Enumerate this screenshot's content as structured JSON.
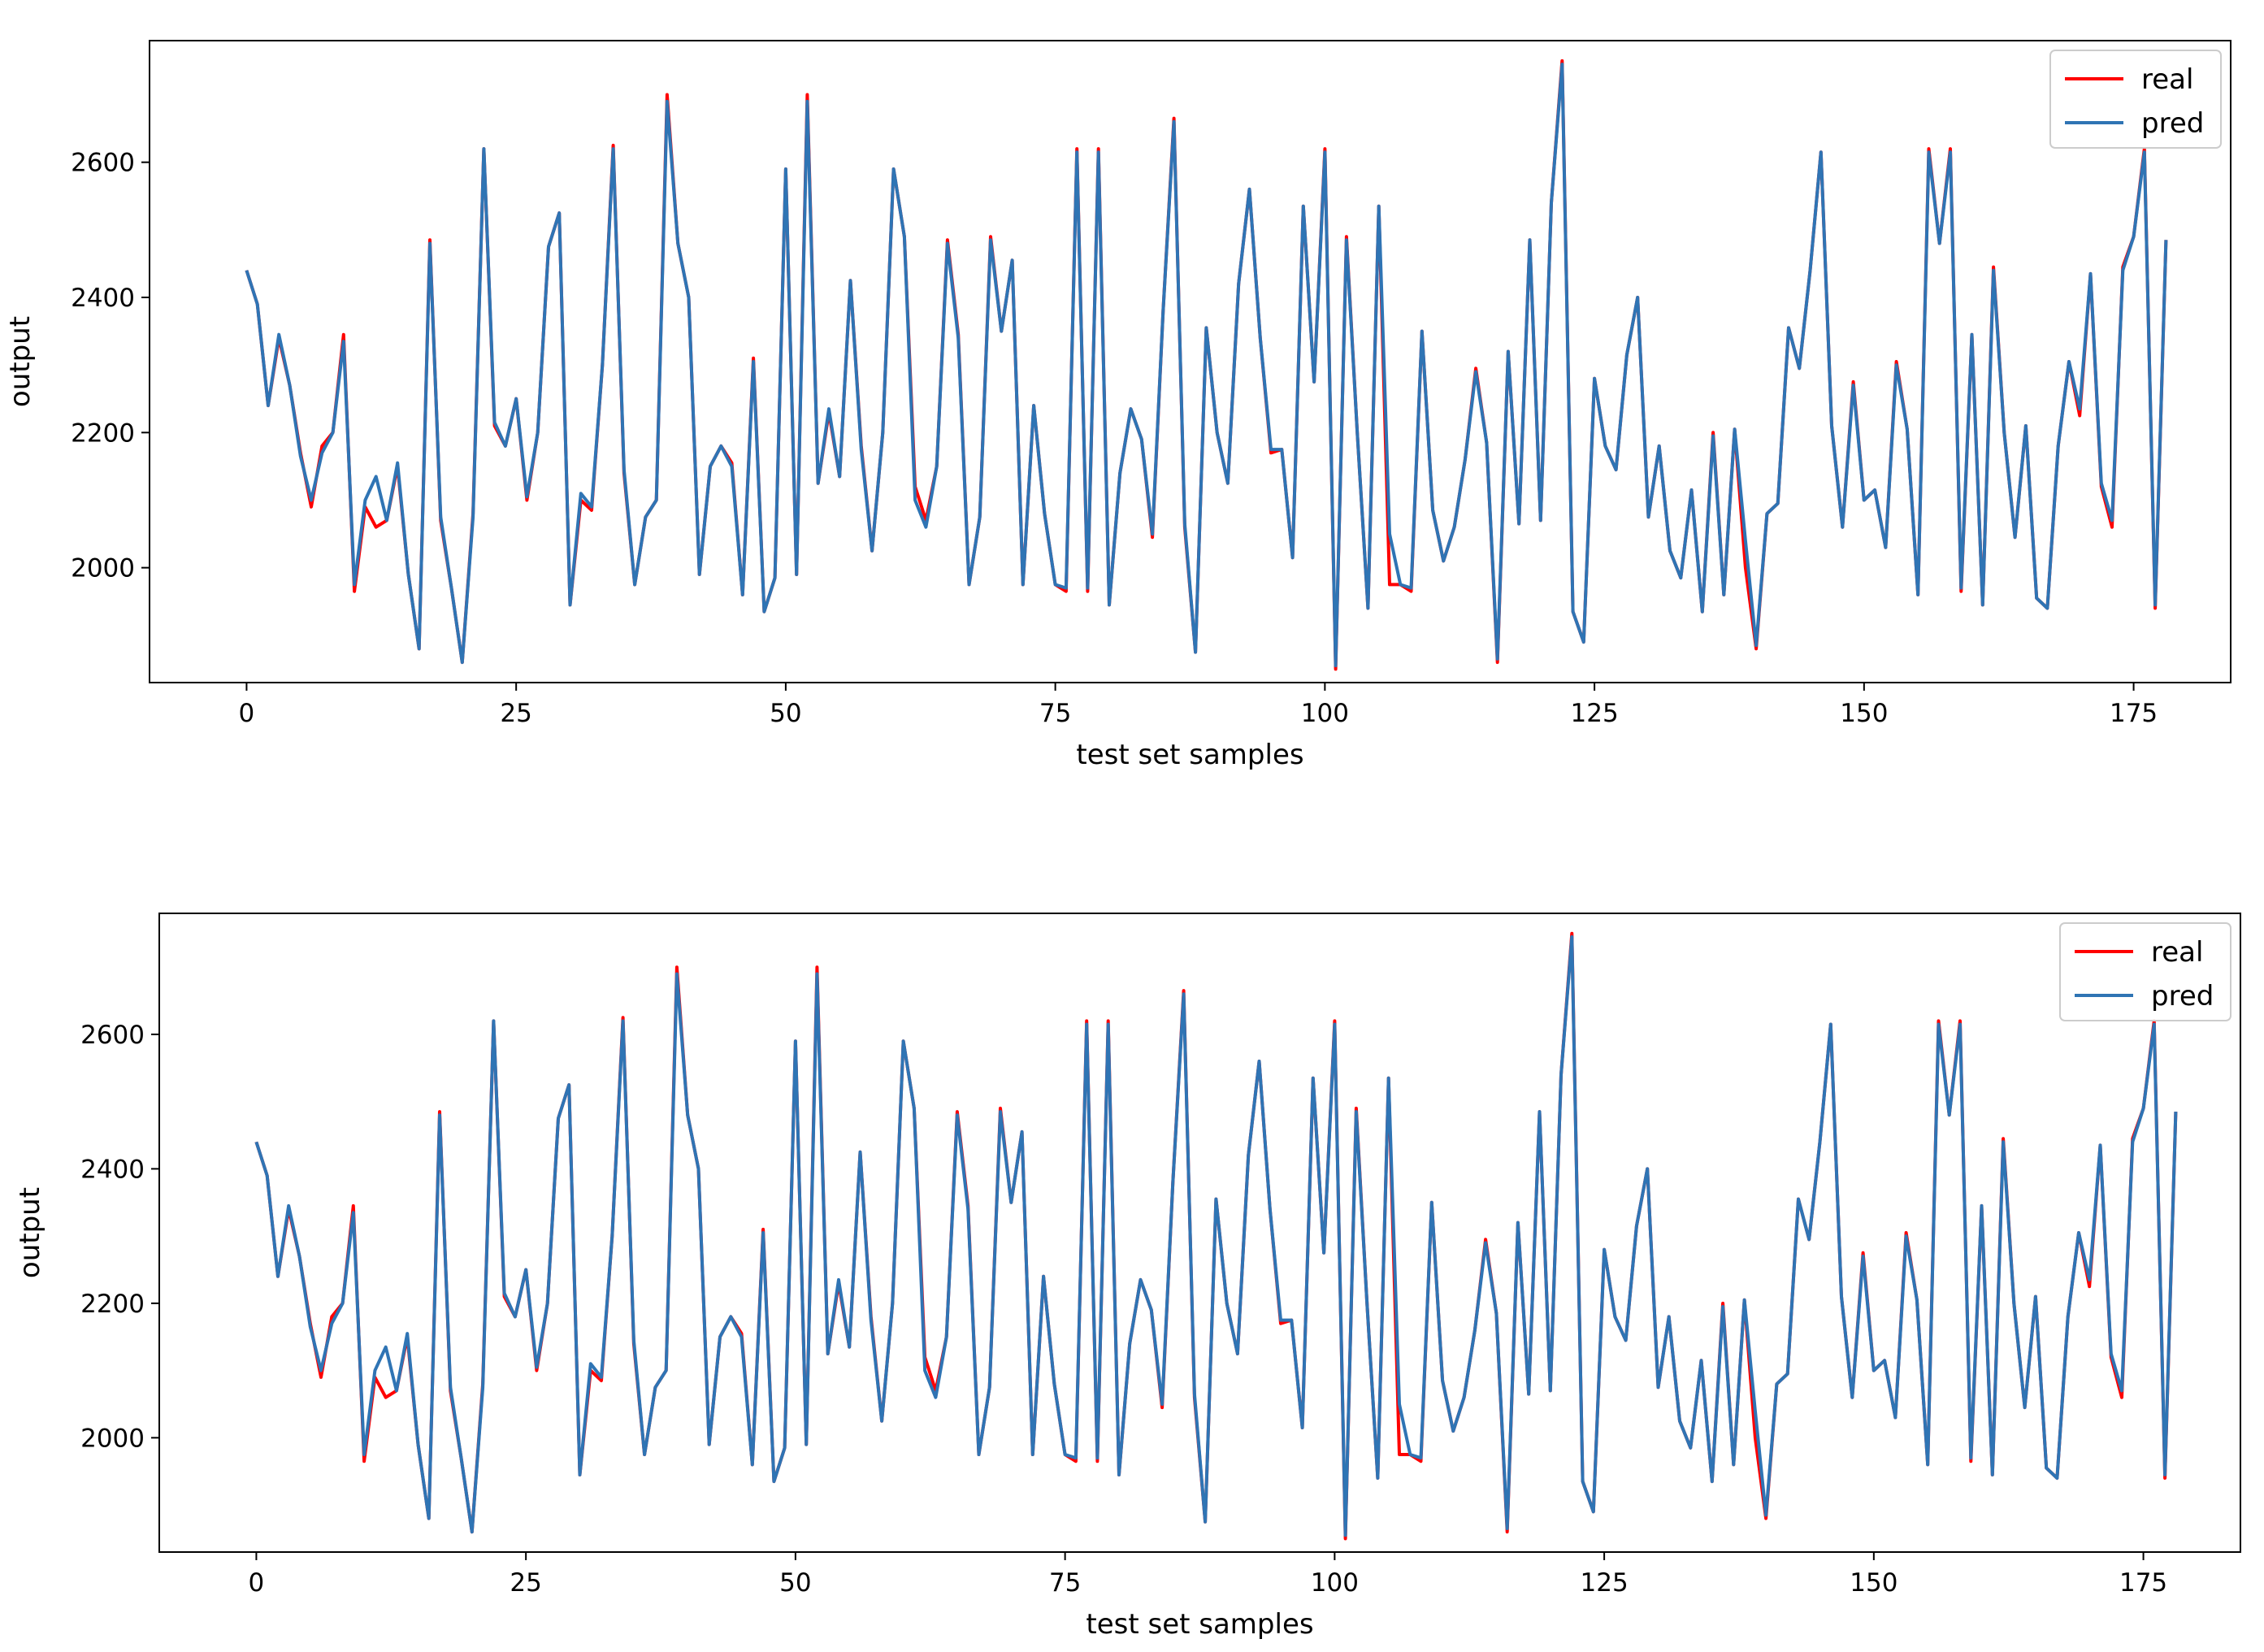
{
  "chart_data": [
    {
      "type": "line",
      "xlabel": "test set samples",
      "ylabel": "output",
      "xticks": [
        0,
        25,
        50,
        75,
        100,
        125,
        150,
        175
      ],
      "yticks": [
        2000,
        2200,
        2400,
        2600
      ],
      "xlim": [
        -9,
        184
      ],
      "ylim": [
        1830,
        2780
      ],
      "grid": false,
      "legend_position": "top-right",
      "x": [
        0,
        1,
        2,
        3,
        4,
        5,
        6,
        7,
        8,
        9,
        10,
        11,
        12,
        13,
        14,
        15,
        16,
        17,
        18,
        19,
        20,
        21,
        22,
        23,
        24,
        25,
        26,
        27,
        28,
        29,
        30,
        31,
        32,
        33,
        34,
        35,
        36,
        37,
        38,
        39,
        40,
        41,
        42,
        43,
        44,
        45,
        46,
        47,
        48,
        49,
        50,
        51,
        52,
        53,
        54,
        55,
        56,
        57,
        58,
        59,
        60,
        61,
        62,
        63,
        64,
        65,
        66,
        67,
        68,
        69,
        70,
        71,
        72,
        73,
        74,
        75,
        76,
        77,
        78,
        79,
        80,
        81,
        82,
        83,
        84,
        85,
        86,
        87,
        88,
        89,
        90,
        91,
        92,
        93,
        94,
        95,
        96,
        97,
        98,
        99,
        100,
        101,
        102,
        103,
        104,
        105,
        106,
        107,
        108,
        109,
        110,
        111,
        112,
        113,
        114,
        115,
        116,
        117,
        118,
        119,
        120,
        121,
        122,
        123,
        124,
        125,
        126,
        127,
        128,
        129,
        130,
        131,
        132,
        133,
        134,
        135,
        136,
        137,
        138,
        139,
        140,
        141,
        142,
        143,
        144,
        145,
        146,
        147,
        148,
        149,
        150,
        151,
        152,
        153,
        154,
        155,
        156,
        157,
        158,
        159,
        160,
        161,
        162,
        163,
        164,
        165,
        166,
        167,
        168,
        169,
        170,
        171,
        172,
        173,
        174,
        175,
        176,
        177,
        178
      ],
      "series": [
        {
          "name": "real",
          "color": "#ff0000",
          "values": [
            2440,
            2390,
            2240,
            2340,
            2270,
            2170,
            2090,
            2180,
            2200,
            2345,
            1965,
            2090,
            2060,
            2070,
            2150,
            1990,
            1880,
            2485,
            2070,
            1970,
            1860,
            2080,
            2620,
            2210,
            2180,
            2250,
            2100,
            2200,
            2475,
            2525,
            1945,
            2100,
            2085,
            2300,
            2625,
            2140,
            1975,
            2075,
            2100,
            2700,
            2480,
            2400,
            1990,
            2150,
            2180,
            2155,
            1960,
            2310,
            1935,
            1985,
            2590,
            1990,
            2700,
            2125,
            2230,
            2135,
            2425,
            2180,
            2025,
            2200,
            2590,
            2490,
            2120,
            2070,
            2150,
            2485,
            2345,
            1975,
            2075,
            2490,
            2350,
            2455,
            1975,
            2240,
            2080,
            1975,
            1965,
            2620,
            1965,
            2620,
            1945,
            2140,
            2235,
            2190,
            2045,
            2380,
            2665,
            2060,
            1875,
            2355,
            2200,
            2125,
            2420,
            2560,
            2340,
            2170,
            2175,
            2015,
            2535,
            2275,
            2620,
            1850,
            2490,
            2200,
            1940,
            2535,
            1975,
            1975,
            1965,
            2350,
            2085,
            2010,
            2060,
            2160,
            2295,
            2185,
            1860,
            2320,
            2065,
            2485,
            2070,
            2540,
            2750,
            1935,
            1890,
            2280,
            2180,
            2145,
            2315,
            2400,
            2075,
            2180,
            2025,
            1985,
            2115,
            1935,
            2200,
            1960,
            2205,
            2000,
            1880,
            2080,
            2095,
            2355,
            2295,
            2440,
            2615,
            2210,
            2060,
            2275,
            2100,
            2115,
            2030,
            2305,
            2205,
            1960,
            2620,
            2480,
            2620,
            1965,
            2345,
            1945,
            2445,
            2200,
            2045,
            2210,
            1955,
            1940,
            2180,
            2305,
            2225,
            2435,
            2120,
            2060,
            2445,
            2490,
            2620,
            1940,
            2485
          ]
        },
        {
          "name": "pred",
          "color": "#2f74b4",
          "values": [
            2440,
            2390,
            2240,
            2345,
            2270,
            2165,
            2100,
            2170,
            2200,
            2335,
            1975,
            2100,
            2135,
            2070,
            2155,
            1990,
            1880,
            2480,
            2075,
            1970,
            1860,
            2075,
            2620,
            2215,
            2180,
            2250,
            2105,
            2200,
            2475,
            2525,
            1945,
            2110,
            2090,
            2300,
            2620,
            2145,
            1975,
            2075,
            2100,
            2690,
            2480,
            2400,
            1990,
            2150,
            2180,
            2150,
            1960,
            2305,
            1935,
            1985,
            2590,
            1990,
            2690,
            2125,
            2235,
            2135,
            2425,
            2175,
            2025,
            2200,
            2590,
            2490,
            2100,
            2060,
            2150,
            2480,
            2340,
            1975,
            2075,
            2485,
            2350,
            2455,
            1975,
            2240,
            2080,
            1975,
            1970,
            2615,
            1970,
            2615,
            1945,
            2140,
            2235,
            2190,
            2050,
            2380,
            2660,
            2065,
            1875,
            2355,
            2200,
            2125,
            2420,
            2560,
            2340,
            2175,
            2175,
            2015,
            2535,
            2275,
            2615,
            1855,
            2485,
            2200,
            1940,
            2535,
            2050,
            1975,
            1970,
            2350,
            2085,
            2010,
            2060,
            2160,
            2290,
            2185,
            1865,
            2320,
            2065,
            2485,
            2070,
            2540,
            2745,
            1935,
            1890,
            2280,
            2180,
            2145,
            2315,
            2400,
            2075,
            2180,
            2025,
            1985,
            2115,
            1935,
            2195,
            1960,
            2205,
            2040,
            1885,
            2080,
            2095,
            2355,
            2295,
            2440,
            2615,
            2210,
            2060,
            2270,
            2100,
            2115,
            2030,
            2300,
            2205,
            1960,
            2615,
            2480,
            2615,
            1970,
            2345,
            1945,
            2440,
            2200,
            2045,
            2210,
            1955,
            1940,
            2180,
            2305,
            2235,
            2435,
            2125,
            2070,
            2440,
            2490,
            2615,
            1945,
            2485
          ]
        }
      ]
    },
    {
      "type": "line",
      "xlabel": "test set samples",
      "ylabel": "output",
      "xticks": [
        0,
        25,
        50,
        75,
        100,
        125,
        150,
        175
      ],
      "yticks": [
        2000,
        2200,
        2400,
        2600
      ],
      "xlim": [
        -9,
        184
      ],
      "ylim": [
        1830,
        2780
      ],
      "grid": false,
      "legend_position": "top-right",
      "x": [
        0,
        1,
        2,
        3,
        4,
        5,
        6,
        7,
        8,
        9,
        10,
        11,
        12,
        13,
        14,
        15,
        16,
        17,
        18,
        19,
        20,
        21,
        22,
        23,
        24,
        25,
        26,
        27,
        28,
        29,
        30,
        31,
        32,
        33,
        34,
        35,
        36,
        37,
        38,
        39,
        40,
        41,
        42,
        43,
        44,
        45,
        46,
        47,
        48,
        49,
        50,
        51,
        52,
        53,
        54,
        55,
        56,
        57,
        58,
        59,
        60,
        61,
        62,
        63,
        64,
        65,
        66,
        67,
        68,
        69,
        70,
        71,
        72,
        73,
        74,
        75,
        76,
        77,
        78,
        79,
        80,
        81,
        82,
        83,
        84,
        85,
        86,
        87,
        88,
        89,
        90,
        91,
        92,
        93,
        94,
        95,
        96,
        97,
        98,
        99,
        100,
        101,
        102,
        103,
        104,
        105,
        106,
        107,
        108,
        109,
        110,
        111,
        112,
        113,
        114,
        115,
        116,
        117,
        118,
        119,
        120,
        121,
        122,
        123,
        124,
        125,
        126,
        127,
        128,
        129,
        130,
        131,
        132,
        133,
        134,
        135,
        136,
        137,
        138,
        139,
        140,
        141,
        142,
        143,
        144,
        145,
        146,
        147,
        148,
        149,
        150,
        151,
        152,
        153,
        154,
        155,
        156,
        157,
        158,
        159,
        160,
        161,
        162,
        163,
        164,
        165,
        166,
        167,
        168,
        169,
        170,
        171,
        172,
        173,
        174,
        175,
        176,
        177,
        178
      ],
      "series": [
        {
          "name": "real",
          "color": "#ff0000",
          "values": [
            2440,
            2390,
            2240,
            2340,
            2270,
            2170,
            2090,
            2180,
            2200,
            2345,
            1965,
            2090,
            2060,
            2070,
            2150,
            1990,
            1880,
            2485,
            2070,
            1970,
            1860,
            2080,
            2620,
            2210,
            2180,
            2250,
            2100,
            2200,
            2475,
            2525,
            1945,
            2100,
            2085,
            2300,
            2625,
            2140,
            1975,
            2075,
            2100,
            2700,
            2480,
            2400,
            1990,
            2150,
            2180,
            2155,
            1960,
            2310,
            1935,
            1985,
            2590,
            1990,
            2700,
            2125,
            2230,
            2135,
            2425,
            2180,
            2025,
            2200,
            2590,
            2490,
            2120,
            2070,
            2150,
            2485,
            2345,
            1975,
            2075,
            2490,
            2350,
            2455,
            1975,
            2240,
            2080,
            1975,
            1965,
            2620,
            1965,
            2620,
            1945,
            2140,
            2235,
            2190,
            2045,
            2380,
            2665,
            2060,
            1875,
            2355,
            2200,
            2125,
            2420,
            2560,
            2340,
            2170,
            2175,
            2015,
            2535,
            2275,
            2620,
            1850,
            2490,
            2200,
            1940,
            2535,
            1975,
            1975,
            1965,
            2350,
            2085,
            2010,
            2060,
            2160,
            2295,
            2185,
            1860,
            2320,
            2065,
            2485,
            2070,
            2540,
            2750,
            1935,
            1890,
            2280,
            2180,
            2145,
            2315,
            2400,
            2075,
            2180,
            2025,
            1985,
            2115,
            1935,
            2200,
            1960,
            2205,
            2000,
            1880,
            2080,
            2095,
            2355,
            2295,
            2440,
            2615,
            2210,
            2060,
            2275,
            2100,
            2115,
            2030,
            2305,
            2205,
            1960,
            2620,
            2480,
            2620,
            1965,
            2345,
            1945,
            2445,
            2200,
            2045,
            2210,
            1955,
            1940,
            2180,
            2305,
            2225,
            2435,
            2120,
            2060,
            2445,
            2490,
            2620,
            1940,
            2485
          ]
        },
        {
          "name": "pred",
          "color": "#2f74b4",
          "values": [
            2440,
            2390,
            2240,
            2345,
            2270,
            2165,
            2100,
            2170,
            2200,
            2335,
            1975,
            2100,
            2135,
            2070,
            2155,
            1990,
            1880,
            2480,
            2075,
            1970,
            1860,
            2075,
            2620,
            2215,
            2180,
            2250,
            2105,
            2200,
            2475,
            2525,
            1945,
            2110,
            2090,
            2300,
            2620,
            2145,
            1975,
            2075,
            2100,
            2690,
            2480,
            2400,
            1990,
            2150,
            2180,
            2150,
            1960,
            2305,
            1935,
            1985,
            2590,
            1990,
            2690,
            2125,
            2235,
            2135,
            2425,
            2175,
            2025,
            2200,
            2590,
            2490,
            2100,
            2060,
            2150,
            2480,
            2340,
            1975,
            2075,
            2485,
            2350,
            2455,
            1975,
            2240,
            2080,
            1975,
            1970,
            2615,
            1970,
            2615,
            1945,
            2140,
            2235,
            2190,
            2050,
            2380,
            2660,
            2065,
            1875,
            2355,
            2200,
            2125,
            2420,
            2560,
            2340,
            2175,
            2175,
            2015,
            2535,
            2275,
            2615,
            1855,
            2485,
            2200,
            1940,
            2535,
            2050,
            1975,
            1970,
            2350,
            2085,
            2010,
            2060,
            2160,
            2290,
            2185,
            1865,
            2320,
            2065,
            2485,
            2070,
            2540,
            2745,
            1935,
            1890,
            2280,
            2180,
            2145,
            2315,
            2400,
            2075,
            2180,
            2025,
            1985,
            2115,
            1935,
            2195,
            1960,
            2205,
            2040,
            1885,
            2080,
            2095,
            2355,
            2295,
            2440,
            2615,
            2210,
            2060,
            2270,
            2100,
            2115,
            2030,
            2300,
            2205,
            1960,
            2615,
            2480,
            2615,
            1970,
            2345,
            1945,
            2440,
            2200,
            2045,
            2210,
            1955,
            1940,
            2180,
            2305,
            2235,
            2435,
            2125,
            2070,
            2440,
            2490,
            2615,
            1945,
            2485
          ]
        }
      ]
    }
  ]
}
